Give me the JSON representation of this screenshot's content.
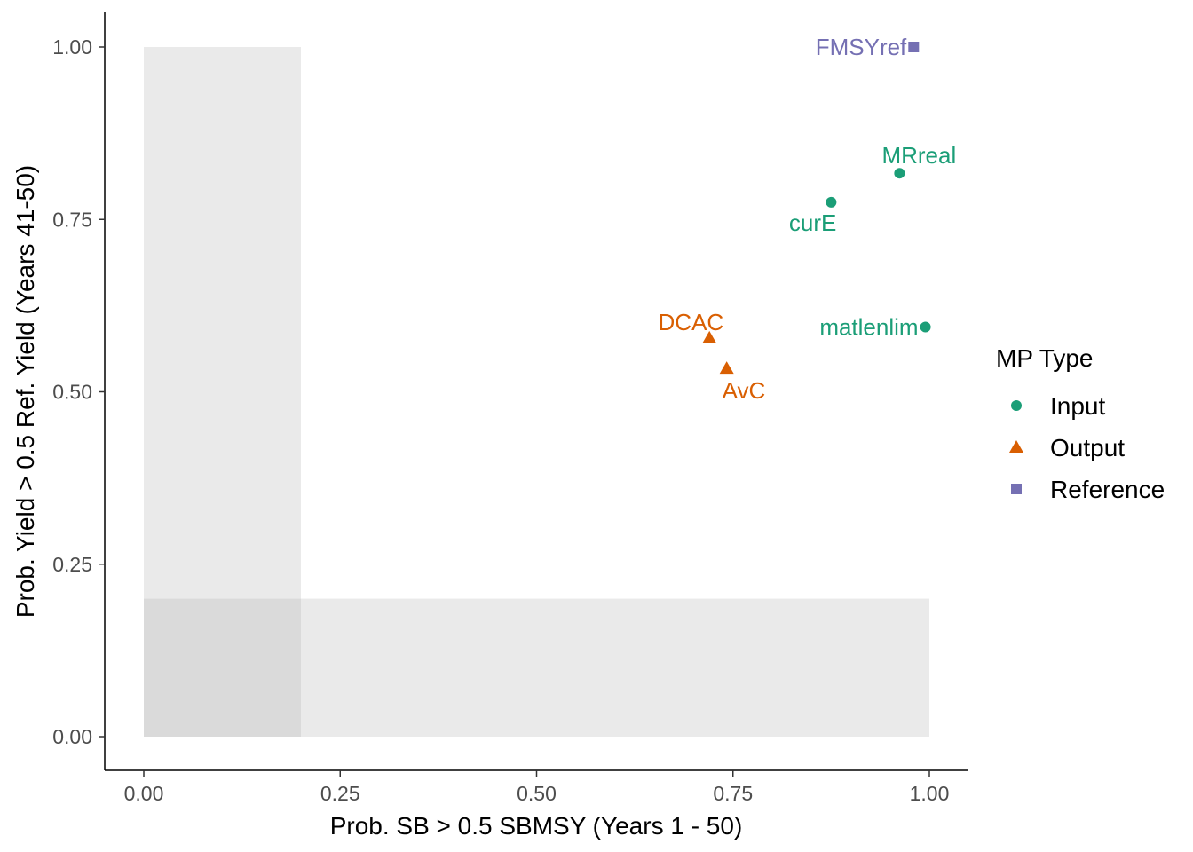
{
  "chart_data": {
    "type": "scatter",
    "xlabel": "Prob. SB > 0.5 SBMSY (Years 1 - 50)",
    "ylabel": "Prob. Yield > 0.5 Ref. Yield (Years 41-50)",
    "xlim": [
      -0.05,
      1.05
    ],
    "ylim": [
      -0.05,
      1.05
    ],
    "x_ticks": [
      0,
      0.25,
      0.5,
      0.75,
      1
    ],
    "x_tick_labels": [
      "0.00",
      "0.25",
      "0.50",
      "0.75",
      "1.00"
    ],
    "y_ticks": [
      0,
      0.25,
      0.5,
      0.75,
      1
    ],
    "y_tick_labels": [
      "0.00",
      "0.25",
      "0.50",
      "0.75",
      "1.00"
    ],
    "grid": false,
    "shaded_regions": [
      {
        "x": [
          0,
          0.2
        ],
        "y": [
          0,
          1
        ]
      },
      {
        "x": [
          0,
          1
        ],
        "y": [
          0,
          0.2
        ]
      }
    ],
    "legend": {
      "title": "MP Type",
      "position": "right",
      "entries": [
        {
          "name": "Input",
          "shape": "circle",
          "color": "#1b9e77"
        },
        {
          "name": "Output",
          "shape": "triangle",
          "color": "#d95f02"
        },
        {
          "name": "Reference",
          "shape": "square",
          "color": "#7570b3"
        }
      ]
    },
    "points": [
      {
        "label": "FMSYref",
        "x": 0.98,
        "y": 1.0,
        "type": "Reference",
        "label_pos": "left"
      },
      {
        "label": "MRreal",
        "x": 0.962,
        "y": 0.817,
        "type": "Input",
        "label_pos": "above"
      },
      {
        "label": "curE",
        "x": 0.875,
        "y": 0.775,
        "type": "Input",
        "label_pos": "below-left"
      },
      {
        "label": "matlenlim",
        "x": 0.995,
        "y": 0.594,
        "type": "Input",
        "label_pos": "left"
      },
      {
        "label": "DCAC",
        "x": 0.72,
        "y": 0.578,
        "type": "Output",
        "label_pos": "above-left"
      },
      {
        "label": "AvC",
        "x": 0.742,
        "y": 0.534,
        "type": "Output",
        "label_pos": "below-right"
      }
    ]
  }
}
